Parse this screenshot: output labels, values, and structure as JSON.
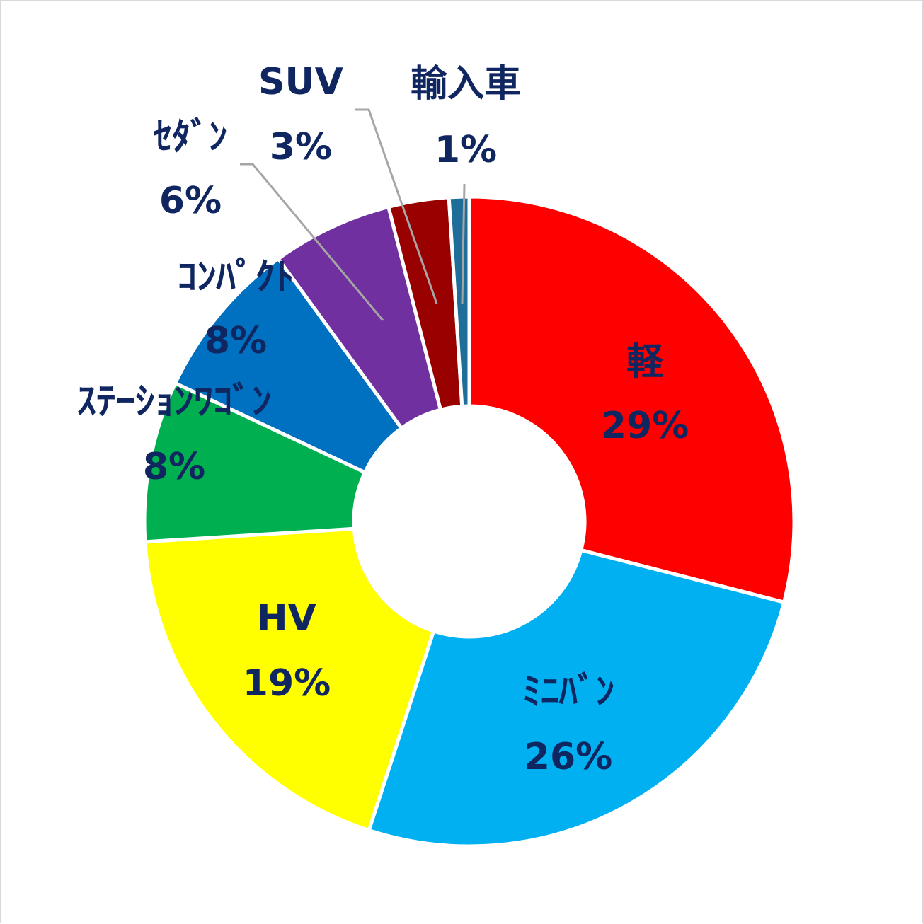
{
  "chart_data": {
    "type": "pie",
    "style": "donut",
    "label_color": "#0f2660",
    "categories": [
      "軽",
      "ミニバン",
      "HV",
      "ステーションワゴン",
      "コンパクト",
      "セダン",
      "SUV",
      "輸入車"
    ],
    "display_labels": [
      "軽",
      "ﾐﾆﾊﾞﾝ",
      "HV",
      "ｽﾃｰｼｮﾝﾜｺﾞﾝ",
      "ｺﾝﾊﾟｸﾄ",
      "ｾﾀﾞﾝ",
      "SUV",
      "輸入車"
    ],
    "values": [
      29,
      26,
      19,
      8,
      8,
      6,
      3,
      1
    ],
    "value_labels": [
      "29%",
      "26%",
      "19%",
      "8%",
      "8%",
      "6%",
      "3%",
      "1%"
    ],
    "colors": [
      "#ff0000",
      "#00b0f0",
      "#ffff00",
      "#00b050",
      "#0070c0",
      "#7030a0",
      "#990000",
      "#1f6d99"
    ]
  }
}
